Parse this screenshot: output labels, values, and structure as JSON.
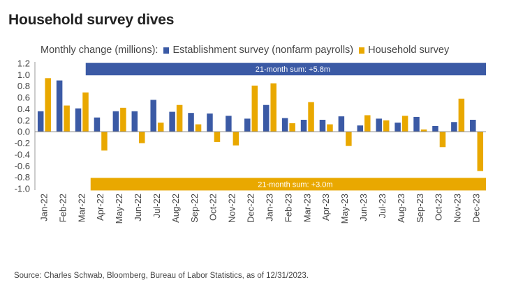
{
  "title": "Household survey dives",
  "legend": {
    "prefix": "Monthly change (millions):",
    "items": [
      {
        "label": "Establishment survey (nonfarm payrolls)",
        "color": "#3b5aa5"
      },
      {
        "label": "Household survey",
        "color": "#e9a800"
      }
    ]
  },
  "source": "Source: Charles Schwab, Bloomberg, Bureau of Labor Statistics, as of 12/31/2023.",
  "chart_data": {
    "type": "bar",
    "title": "Household survey dives",
    "ylim": [
      -1.0,
      1.2
    ],
    "yticks": [
      "1.2",
      "1.0",
      "0.8",
      "0.6",
      "0.4",
      "0.2",
      "0.0",
      "-0.2",
      "-0.4",
      "-0.6",
      "-0.8",
      "-1.0"
    ],
    "yticks_values": [
      1.2,
      1.0,
      0.8,
      0.6,
      0.4,
      0.2,
      0.0,
      -0.2,
      -0.4,
      -0.6,
      -0.8,
      -1.0
    ],
    "categories": [
      "Jan-22",
      "Feb-22",
      "Mar-22",
      "Apr-22",
      "May-22",
      "Jun-22",
      "Jul-22",
      "Aug-22",
      "Sep-22",
      "Oct-22",
      "Nov-22",
      "Dec-22",
      "Jan-23",
      "Feb-23",
      "Mar-23",
      "Apr-23",
      "May-23",
      "Jun-23",
      "Jul-23",
      "Aug-23",
      "Sep-23",
      "Oct-23",
      "Nov-23",
      "Dec-23"
    ],
    "series": [
      {
        "name": "Establishment survey (nonfarm payrolls)",
        "color": "#3b5aa5",
        "values": [
          0.36,
          0.9,
          0.41,
          0.25,
          0.36,
          0.36,
          0.56,
          0.35,
          0.33,
          0.32,
          0.28,
          0.23,
          0.47,
          0.24,
          0.21,
          0.21,
          0.27,
          0.11,
          0.23,
          0.16,
          0.26,
          0.1,
          0.17,
          0.21
        ]
      },
      {
        "name": "Household survey",
        "color": "#e9a800",
        "values": [
          0.94,
          0.46,
          0.69,
          -0.33,
          0.42,
          -0.2,
          0.16,
          0.47,
          0.13,
          -0.18,
          -0.24,
          0.81,
          0.85,
          0.15,
          0.52,
          0.13,
          -0.25,
          0.29,
          0.2,
          0.28,
          0.04,
          -0.27,
          0.58,
          -0.69
        ]
      }
    ],
    "annotations": [
      {
        "text": "21-month sum: +5.8m",
        "color": "#3b5aa5",
        "from_index": 3,
        "to_index": 23,
        "y": 1.1
      },
      {
        "text": "21-month sum: +3.0m",
        "color": "#e9a800",
        "from_index": 3,
        "to_index": 23,
        "y": -0.92
      }
    ]
  }
}
